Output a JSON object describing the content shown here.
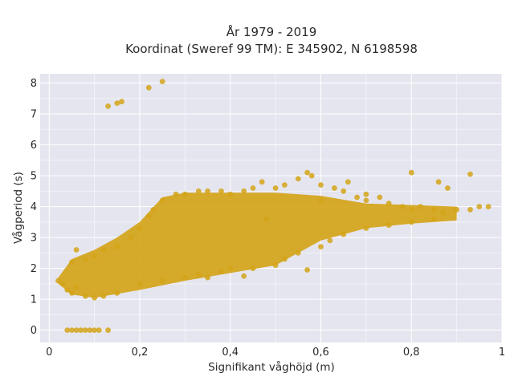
{
  "chart_data": {
    "type": "scatter",
    "title": "År 1979 - 2019",
    "subtitle": "Koordinat (Sweref 99 TM): E 345902, N 6198598",
    "xlabel": "Signifikant våghöjd (m)",
    "ylabel": "Vågperiod (s)",
    "xlim": [
      -0.02,
      1.0
    ],
    "ylim": [
      -0.4,
      8.3
    ],
    "xticks": [
      0,
      0.2,
      0.4,
      0.6,
      0.8,
      1.0
    ],
    "xtick_labels": [
      "0",
      "0,2",
      "0,4",
      "0,6",
      "0,8",
      "1"
    ],
    "yticks": [
      0,
      1,
      2,
      3,
      4,
      5,
      6,
      7,
      8
    ],
    "ytick_labels": [
      "0",
      "1",
      "2",
      "3",
      "4",
      "5",
      "6",
      "7",
      "8"
    ],
    "grid": true,
    "legend": "none",
    "marker_color": "#d4a419",
    "background_color": "#e5e5ef",
    "series": [
      {
        "points": [
          [
            0.04,
            0.0
          ],
          [
            0.05,
            0.0
          ],
          [
            0.06,
            0.0
          ],
          [
            0.07,
            0.0
          ],
          [
            0.08,
            0.0
          ],
          [
            0.09,
            0.0
          ],
          [
            0.1,
            0.0
          ],
          [
            0.11,
            0.0
          ],
          [
            0.13,
            0.0
          ],
          [
            0.02,
            1.6
          ],
          [
            0.03,
            1.5
          ],
          [
            0.04,
            1.3
          ],
          [
            0.05,
            1.2
          ],
          [
            0.06,
            1.4
          ],
          [
            0.08,
            1.1
          ],
          [
            0.1,
            1.05
          ],
          [
            0.12,
            1.1
          ],
          [
            0.15,
            1.2
          ],
          [
            0.05,
            2.2
          ],
          [
            0.06,
            2.6
          ],
          [
            0.08,
            2.3
          ],
          [
            0.1,
            2.4
          ],
          [
            0.12,
            2.6
          ],
          [
            0.15,
            2.7
          ],
          [
            0.18,
            3.0
          ],
          [
            0.2,
            3.3
          ],
          [
            0.22,
            3.7
          ],
          [
            0.23,
            3.9
          ],
          [
            0.25,
            4.2
          ],
          [
            0.28,
            4.4
          ],
          [
            0.3,
            4.4
          ],
          [
            0.33,
            4.5
          ],
          [
            0.35,
            4.5
          ],
          [
            0.38,
            4.5
          ],
          [
            0.4,
            4.4
          ],
          [
            0.43,
            4.5
          ],
          [
            0.45,
            4.6
          ],
          [
            0.47,
            4.8
          ],
          [
            0.5,
            4.6
          ],
          [
            0.52,
            4.7
          ],
          [
            0.55,
            4.9
          ],
          [
            0.58,
            5.0
          ],
          [
            0.6,
            4.7
          ],
          [
            0.63,
            4.6
          ],
          [
            0.65,
            4.5
          ],
          [
            0.68,
            4.3
          ],
          [
            0.7,
            4.2
          ],
          [
            0.73,
            4.3
          ],
          [
            0.75,
            4.1
          ],
          [
            0.78,
            4.0
          ],
          [
            0.8,
            3.9
          ],
          [
            0.82,
            4.0
          ],
          [
            0.85,
            3.9
          ],
          [
            0.87,
            3.8
          ],
          [
            0.9,
            3.9
          ],
          [
            0.93,
            3.9
          ],
          [
            0.95,
            4.0
          ],
          [
            0.97,
            4.0
          ],
          [
            0.2,
            1.5
          ],
          [
            0.25,
            1.6
          ],
          [
            0.3,
            1.7
          ],
          [
            0.33,
            1.8
          ],
          [
            0.35,
            1.7
          ],
          [
            0.38,
            1.9
          ],
          [
            0.4,
            2.0
          ],
          [
            0.45,
            2.0
          ],
          [
            0.5,
            2.1
          ],
          [
            0.52,
            2.3
          ],
          [
            0.55,
            2.5
          ],
          [
            0.6,
            2.7
          ],
          [
            0.62,
            2.9
          ],
          [
            0.65,
            3.1
          ],
          [
            0.7,
            3.3
          ],
          [
            0.75,
            3.4
          ],
          [
            0.8,
            3.5
          ],
          [
            0.85,
            3.6
          ],
          [
            0.57,
            1.95
          ],
          [
            0.43,
            1.75
          ],
          [
            0.48,
            3.6
          ],
          [
            0.6,
            4.2
          ],
          [
            0.8,
            5.1
          ],
          [
            0.86,
            4.8
          ],
          [
            0.93,
            5.05
          ],
          [
            0.88,
            4.6
          ],
          [
            0.57,
            5.1
          ],
          [
            0.66,
            4.8
          ],
          [
            0.7,
            4.4
          ],
          [
            0.13,
            7.25
          ],
          [
            0.15,
            7.35
          ],
          [
            0.16,
            7.4
          ],
          [
            0.22,
            7.85
          ],
          [
            0.25,
            8.05
          ]
        ]
      }
    ]
  }
}
